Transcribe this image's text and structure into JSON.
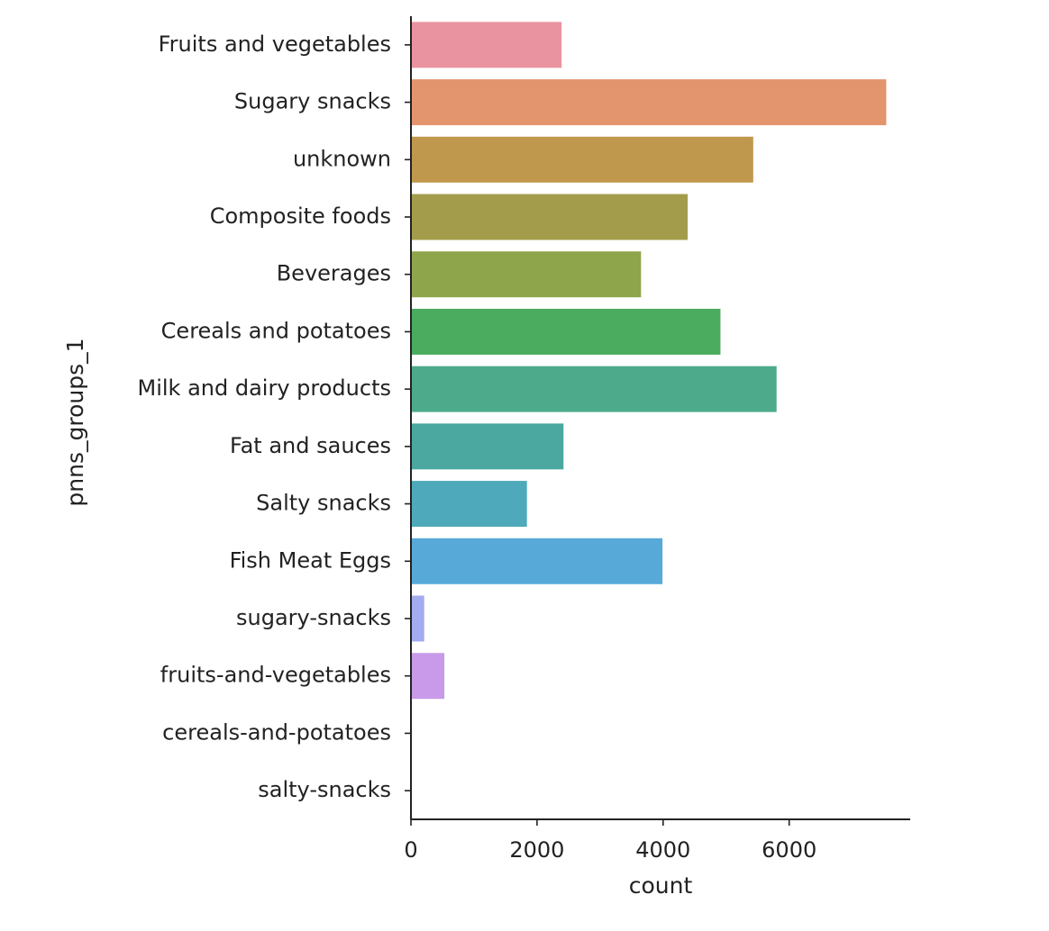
{
  "chart_data": {
    "type": "bar",
    "orientation": "horizontal",
    "title": "",
    "xlabel": "count",
    "ylabel": "pnns_groups_1",
    "categories": [
      "Fruits and vegetables",
      "Sugary snacks",
      "unknown",
      "Composite foods",
      "Beverages",
      "Cereals and potatoes",
      "Milk and dairy products",
      "Fat and sauces",
      "Salty snacks",
      "Fish Meat Eggs",
      "sugary-snacks",
      "fruits-and-vegetables",
      "cereals-and-potatoes",
      "salty-snacks"
    ],
    "values": [
      2390,
      7540,
      5430,
      4390,
      3650,
      4910,
      5800,
      2420,
      1840,
      3990,
      210,
      530,
      0,
      0
    ],
    "colors": [
      "#ea93a0",
      "#e3956e",
      "#c0984d",
      "#a39d4b",
      "#8fa54c",
      "#4bab5f",
      "#4dab8c",
      "#4ba8a0",
      "#4eaabb",
      "#57a9d8",
      "#a2acef",
      "#c89ae9",
      "#e58fdb",
      "#eb93c0"
    ],
    "xlim": [
      0,
      7920
    ],
    "xticks": [
      0,
      2000,
      4000,
      6000
    ],
    "grid": false
  }
}
